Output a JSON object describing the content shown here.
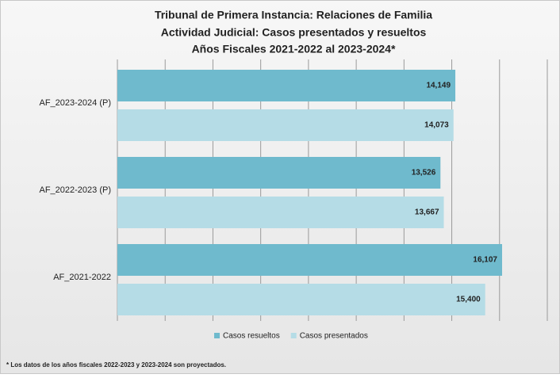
{
  "chart_data": {
    "type": "hbar",
    "title": [
      "Tribunal de Primera Instancia: Relaciones de Familia",
      "Actividad Judicial: Casos presentados y resueltos",
      "Años Fiscales 2021-2022 al 2023-2024*"
    ],
    "categories": [
      "AF_2023-2024 (P)",
      "AF_2022-2023 (P)",
      "AF_2021-2022"
    ],
    "series": [
      {
        "name": "Casos resueltos",
        "color": "#6fbacd",
        "values": [
          14149,
          13526,
          16107
        ],
        "value_labels": [
          "14,149",
          "13,526",
          "16,107"
        ]
      },
      {
        "name": "Casos presentados",
        "color": "#b5dce6",
        "values": [
          14073,
          13667,
          15400
        ],
        "value_labels": [
          "14,073",
          "13,667",
          "15,400"
        ]
      }
    ],
    "xlim": [
      0,
      18000
    ],
    "xticks": [
      0,
      2000,
      4000,
      6000,
      8000,
      10000,
      12000,
      14000,
      16000,
      18000
    ],
    "grid": true,
    "legend": "bottom",
    "footnote": "* Los datos de los años fiscales 2022-2023 y 2023-2024 son proyectados."
  }
}
